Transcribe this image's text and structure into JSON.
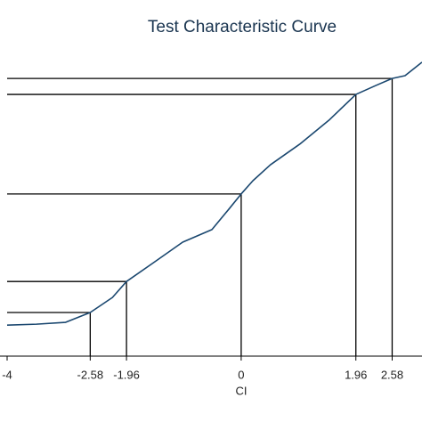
{
  "chart_data": {
    "type": "line",
    "title": "Test Characteristic Curve",
    "x_label": "CI",
    "x": [
      -4,
      -3.5,
      -3,
      -2.58,
      -2.2,
      -1.96,
      -1.5,
      -1,
      -0.5,
      -0.2,
      0,
      0.2,
      0.5,
      1,
      1.5,
      1.96,
      2.3,
      2.58,
      2.8,
      3.09
    ],
    "series": [
      {
        "color": "#1a476f",
        "values": [
          10.1,
          10.4,
          11,
          14.2,
          19.1,
          24.3,
          30.4,
          37.1,
          41.2,
          48.1,
          52.8,
          57.1,
          62.3,
          69,
          76.8,
          85.2,
          88.1,
          90.4,
          91.3,
          95.7
        ]
      }
    ],
    "reference_lines": [
      {
        "x": -2.58,
        "y": 14.2
      },
      {
        "x": -1.96,
        "y": 24.3
      },
      {
        "x": 0,
        "y": 52.8
      },
      {
        "x": 1.96,
        "y": 85.2
      },
      {
        "x": 2.58,
        "y": 90.4
      }
    ],
    "xlim": [
      -4,
      3.09
    ],
    "ylim": [
      0,
      100
    ],
    "xticks": [
      -4,
      -2.58,
      -1.96,
      0,
      1.96,
      2.58
    ]
  }
}
